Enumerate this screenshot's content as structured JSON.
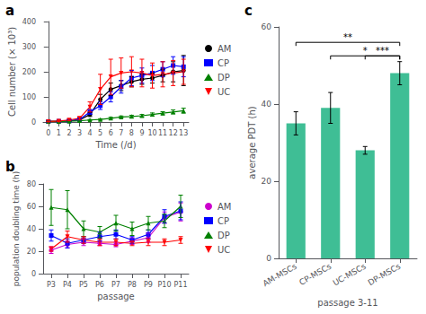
{
  "chart_data": [
    {
      "type": "line",
      "annotations": [
        {
          "text": "a"
        }
      ],
      "xlabel": "Time (/d)",
      "ylabel": "Cell number (× 10³)",
      "x": [
        0,
        1,
        2,
        3,
        4,
        5,
        6,
        7,
        8,
        9,
        10,
        11,
        12,
        13
      ],
      "xlim": [
        -0.5,
        13.5
      ],
      "xticks": [
        0,
        1,
        2,
        3,
        4,
        5,
        6,
        7,
        8,
        9,
        10,
        11,
        12,
        13
      ],
      "ylim": [
        0,
        400
      ],
      "yticks": [
        0,
        100,
        200,
        300,
        400
      ],
      "grid": false,
      "legend": "right",
      "series": [
        {
          "name": "AM",
          "color": "#000000",
          "marker": "circle",
          "values": [
            2,
            3,
            5,
            8,
            30,
            90,
            130,
            145,
            160,
            170,
            175,
            185,
            200,
            205
          ],
          "errors": [
            1,
            1,
            2,
            3,
            8,
            20,
            25,
            20,
            20,
            20,
            20,
            25,
            40,
            60
          ]
        },
        {
          "name": "CP",
          "color": "#0000FF",
          "marker": "square",
          "values": [
            2,
            3,
            5,
            10,
            40,
            65,
            100,
            140,
            175,
            185,
            195,
            210,
            225,
            220
          ],
          "errors": [
            1,
            1,
            2,
            4,
            10,
            15,
            20,
            25,
            30,
            30,
            30,
            30,
            35,
            40
          ]
        },
        {
          "name": "DP",
          "color": "#008000",
          "marker": "triangle",
          "values": [
            2,
            2,
            3,
            5,
            8,
            10,
            15,
            20,
            22,
            25,
            30,
            35,
            40,
            45
          ],
          "errors": [
            1,
            1,
            1,
            2,
            2,
            3,
            4,
            4,
            5,
            5,
            6,
            6,
            8,
            10
          ]
        },
        {
          "name": "UC",
          "color": "#FF0000",
          "marker": "triangle_down",
          "values": [
            2,
            4,
            8,
            15,
            60,
            130,
            180,
            195,
            200,
            195,
            185,
            190,
            195,
            200
          ],
          "errors": [
            1,
            2,
            3,
            5,
            20,
            60,
            70,
            60,
            60,
            55,
            50,
            50,
            50,
            50
          ]
        }
      ]
    },
    {
      "type": "line",
      "annotations": [
        {
          "text": "b"
        }
      ],
      "xlabel": "passage",
      "ylabel": "population doubling time (h)",
      "categories": [
        "P3",
        "P4",
        "P5",
        "P6",
        "P7",
        "P8",
        "P9",
        "P10",
        "P11"
      ],
      "ylim": [
        0,
        80
      ],
      "yticks": [
        0,
        20,
        40,
        60,
        80
      ],
      "grid": false,
      "legend": "right",
      "series": [
        {
          "name": "AM",
          "color": "#CC00CC",
          "marker": "circle",
          "values": [
            21,
            26,
            28,
            27,
            26,
            29,
            32,
            50,
            55
          ],
          "errors": [
            3,
            3,
            3,
            2,
            2,
            3,
            4,
            5,
            8
          ]
        },
        {
          "name": "CP",
          "color": "#0000FF",
          "marker": "square",
          "values": [
            34,
            27,
            30,
            33,
            35,
            30,
            35,
            51,
            56
          ],
          "errors": [
            5,
            4,
            3,
            4,
            4,
            3,
            4,
            6,
            8
          ]
        },
        {
          "name": "DP",
          "color": "#008000",
          "marker": "triangle",
          "values": [
            59,
            57,
            40,
            37,
            45,
            40,
            45,
            47,
            60
          ],
          "errors": [
            16,
            17,
            7,
            5,
            7,
            6,
            6,
            6,
            10
          ]
        },
        {
          "name": "UC",
          "color": "#FF0000",
          "marker": "triangle_down",
          "values": [
            22,
            33,
            30,
            28,
            28,
            27,
            28,
            28,
            30
          ],
          "errors": [
            2,
            5,
            3,
            3,
            3,
            2,
            3,
            3,
            3
          ]
        }
      ]
    },
    {
      "type": "bar",
      "annotations": [
        {
          "text": "c"
        },
        {
          "text": "**",
          "from": "AM-MSCs",
          "to": "DP-MSCs",
          "y": 56
        },
        {
          "text": "*",
          "from": "CP-MSCs",
          "to": "DP-MSCs",
          "y": 52.5
        },
        {
          "text": "***",
          "from": "UC-MSCs",
          "to": "DP-MSCs",
          "y": 52.5
        }
      ],
      "xlabel": "passage 3-11",
      "ylabel": "average PDT (h)",
      "categories": [
        "AM-MSCs",
        "CP-MSCs",
        "UC-MSCs",
        "DP-MSCs"
      ],
      "values": [
        35,
        39,
        28,
        48
      ],
      "errors": [
        3,
        4,
        1,
        3
      ],
      "ylim": [
        0,
        60
      ],
      "yticks": [
        0,
        20,
        40,
        60
      ],
      "grid": false
    }
  ]
}
